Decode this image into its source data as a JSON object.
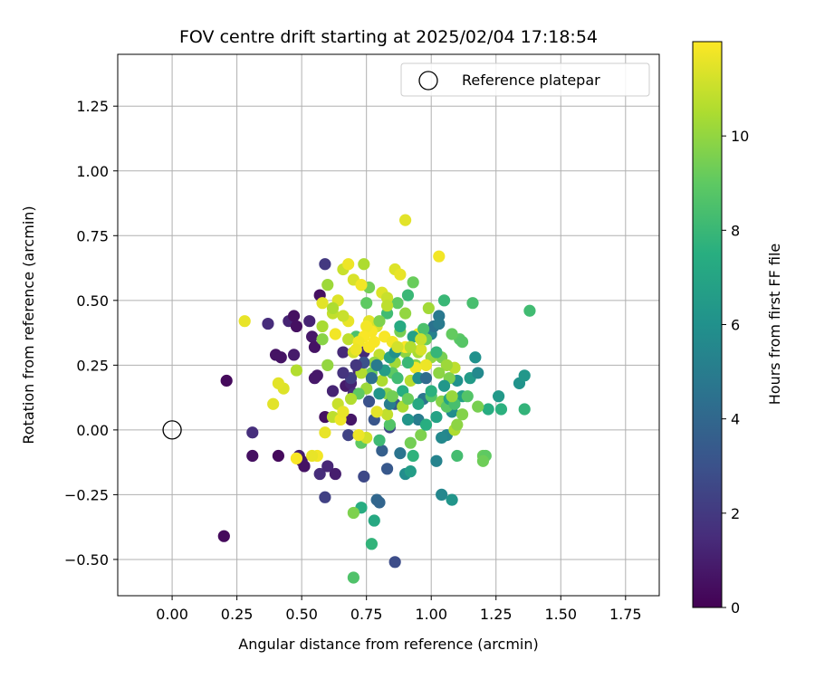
{
  "chart_data": {
    "type": "scatter",
    "title": "FOV centre drift starting at 2025/02/04 17:18:54",
    "xlabel": "Angular distance from reference (arcmin)",
    "ylabel": "Rotation from reference (arcmin)",
    "xlim": [
      -0.21,
      1.88
    ],
    "ylim": [
      -0.64,
      1.45
    ],
    "xticks": [
      0.0,
      0.25,
      0.5,
      0.75,
      1.0,
      1.25,
      1.5,
      1.75
    ],
    "xtick_labels": [
      "0.00",
      "0.25",
      "0.50",
      "0.75",
      "1.00",
      "1.25",
      "1.50",
      "1.75"
    ],
    "yticks": [
      -0.5,
      -0.25,
      0.0,
      0.25,
      0.5,
      0.75,
      1.0,
      1.25
    ],
    "ytick_labels": [
      "−0.50",
      "−0.25",
      "0.00",
      "0.25",
      "0.50",
      "0.75",
      "1.00",
      "1.25"
    ],
    "grid": true,
    "legend": {
      "placement": "upper right",
      "entries": [
        "Reference platepar"
      ]
    },
    "reference_point": {
      "x": 0.0,
      "y": 0.0,
      "marker": "hollow circle"
    },
    "colorbar": {
      "label": "Hours from first FF file",
      "colormap": "viridis",
      "min": 0,
      "max": 12,
      "ticks": [
        0,
        2,
        4,
        6,
        8,
        10
      ],
      "tick_labels": [
        "0",
        "2",
        "4",
        "6",
        "8",
        "10"
      ]
    },
    "points": [
      {
        "x": 0.21,
        "y": 0.19,
        "h": 0.3
      },
      {
        "x": 0.2,
        "y": -0.41,
        "h": 0.3
      },
      {
        "x": 0.31,
        "y": -0.1,
        "h": 0.5
      },
      {
        "x": 0.31,
        "y": -0.01,
        "h": 1.6
      },
      {
        "x": 0.37,
        "y": 0.41,
        "h": 1.5
      },
      {
        "x": 0.4,
        "y": 0.29,
        "h": 0.6
      },
      {
        "x": 0.42,
        "y": 0.28,
        "h": 0.6
      },
      {
        "x": 0.41,
        "y": -0.1,
        "h": 0.3
      },
      {
        "x": 0.45,
        "y": 0.42,
        "h": 1.2
      },
      {
        "x": 0.47,
        "y": 0.44,
        "h": 0.5
      },
      {
        "x": 0.48,
        "y": 0.4,
        "h": 0.5
      },
      {
        "x": 0.47,
        "y": 0.29,
        "h": 0.9
      },
      {
        "x": 0.49,
        "y": -0.1,
        "h": 1.0
      },
      {
        "x": 0.5,
        "y": -0.12,
        "h": 0.7
      },
      {
        "x": 0.51,
        "y": -0.14,
        "h": 0.6
      },
      {
        "x": 0.53,
        "y": 0.42,
        "h": 1.2
      },
      {
        "x": 0.54,
        "y": 0.36,
        "h": 0.8
      },
      {
        "x": 0.55,
        "y": 0.32,
        "h": 0.6
      },
      {
        "x": 0.56,
        "y": 0.21,
        "h": 0.8
      },
      {
        "x": 0.55,
        "y": 0.2,
        "h": 0.8
      },
      {
        "x": 0.57,
        "y": -0.17,
        "h": 1.5
      },
      {
        "x": 0.57,
        "y": 0.52,
        "h": 0.5
      },
      {
        "x": 0.59,
        "y": 0.64,
        "h": 2.0
      },
      {
        "x": 0.59,
        "y": 0.05,
        "h": 0.5
      },
      {
        "x": 0.59,
        "y": -0.26,
        "h": 2.3
      },
      {
        "x": 0.6,
        "y": -0.14,
        "h": 1.3
      },
      {
        "x": 0.63,
        "y": -0.17,
        "h": 1.0
      },
      {
        "x": 0.62,
        "y": 0.15,
        "h": 1.2
      },
      {
        "x": 0.66,
        "y": 0.3,
        "h": 1.4
      },
      {
        "x": 0.67,
        "y": 0.17,
        "h": 0.9
      },
      {
        "x": 0.69,
        "y": 0.18,
        "h": 1.2
      },
      {
        "x": 0.69,
        "y": 0.04,
        "h": 0.7
      },
      {
        "x": 0.68,
        "y": -0.02,
        "h": 2.4
      },
      {
        "x": 0.7,
        "y": 0.14,
        "h": 1.6
      },
      {
        "x": 0.72,
        "y": 0.23,
        "h": 1.3
      },
      {
        "x": 0.74,
        "y": 0.3,
        "h": 1.4
      },
      {
        "x": 0.74,
        "y": -0.18,
        "h": 2.6
      },
      {
        "x": 0.76,
        "y": 0.11,
        "h": 3.0
      },
      {
        "x": 0.78,
        "y": 0.04,
        "h": 3.2
      },
      {
        "x": 0.79,
        "y": -0.27,
        "h": 4.0
      },
      {
        "x": 0.8,
        "y": -0.28,
        "h": 3.9
      },
      {
        "x": 0.81,
        "y": -0.08,
        "h": 3.6
      },
      {
        "x": 0.83,
        "y": -0.15,
        "h": 3.3
      },
      {
        "x": 0.84,
        "y": 0.01,
        "h": 2.6
      },
      {
        "x": 0.86,
        "y": -0.51,
        "h": 2.8
      },
      {
        "x": 0.86,
        "y": 0.1,
        "h": 3.3
      },
      {
        "x": 0.88,
        "y": -0.09,
        "h": 4.6
      },
      {
        "x": 0.9,
        "y": -0.17,
        "h": 5.8
      },
      {
        "x": 0.92,
        "y": -0.16,
        "h": 6.6
      },
      {
        "x": 0.95,
        "y": 0.04,
        "h": 5.0
      },
      {
        "x": 0.97,
        "y": 0.12,
        "h": 4.7
      },
      {
        "x": 1.0,
        "y": 0.37,
        "h": 5.2
      },
      {
        "x": 1.01,
        "y": 0.4,
        "h": 4.5
      },
      {
        "x": 1.03,
        "y": 0.44,
        "h": 4.8
      },
      {
        "x": 1.03,
        "y": 0.41,
        "h": 4.9
      },
      {
        "x": 1.02,
        "y": -0.12,
        "h": 5.3
      },
      {
        "x": 1.04,
        "y": -0.25,
        "h": 5.5
      },
      {
        "x": 1.06,
        "y": -0.02,
        "h": 5.4
      },
      {
        "x": 1.08,
        "y": 0.07,
        "h": 5.8
      },
      {
        "x": 1.08,
        "y": -0.27,
        "h": 6.2
      },
      {
        "x": 1.1,
        "y": 0.19,
        "h": 6.0
      },
      {
        "x": 1.15,
        "y": 0.2,
        "h": 6.5
      },
      {
        "x": 1.17,
        "y": 0.28,
        "h": 6.0
      },
      {
        "x": 1.18,
        "y": 0.22,
        "h": 5.6
      },
      {
        "x": 1.12,
        "y": 0.13,
        "h": 6.7
      },
      {
        "x": 1.22,
        "y": 0.08,
        "h": 7.4
      },
      {
        "x": 1.26,
        "y": 0.13,
        "h": 6.4
      },
      {
        "x": 1.27,
        "y": 0.08,
        "h": 7.6
      },
      {
        "x": 1.34,
        "y": 0.18,
        "h": 6.1
      },
      {
        "x": 1.36,
        "y": 0.21,
        "h": 6.3
      },
      {
        "x": 1.36,
        "y": 0.08,
        "h": 7.8
      },
      {
        "x": 1.38,
        "y": 0.46,
        "h": 8.2
      },
      {
        "x": 1.16,
        "y": 0.49,
        "h": 8.4
      },
      {
        "x": 1.11,
        "y": 0.35,
        "h": 8.9
      },
      {
        "x": 1.2,
        "y": -0.1,
        "h": 9.2
      },
      {
        "x": 1.21,
        "y": -0.1,
        "h": 9.0
      },
      {
        "x": 1.2,
        "y": -0.12,
        "h": 9.3
      },
      {
        "x": 1.1,
        "y": -0.1,
        "h": 8.3
      },
      {
        "x": 1.18,
        "y": 0.09,
        "h": 9.5
      },
      {
        "x": 1.14,
        "y": 0.13,
        "h": 8.7
      },
      {
        "x": 1.05,
        "y": 0.5,
        "h": 8.0
      },
      {
        "x": 1.08,
        "y": 0.37,
        "h": 9.1
      },
      {
        "x": 0.93,
        "y": 0.57,
        "h": 9.2
      },
      {
        "x": 0.91,
        "y": 0.52,
        "h": 8.0
      },
      {
        "x": 0.87,
        "y": 0.49,
        "h": 9.0
      },
      {
        "x": 0.83,
        "y": 0.45,
        "h": 8.2
      },
      {
        "x": 0.76,
        "y": 0.55,
        "h": 9.4
      },
      {
        "x": 0.75,
        "y": 0.49,
        "h": 9.0
      },
      {
        "x": 0.71,
        "y": 0.36,
        "h": 8.5
      },
      {
        "x": 0.73,
        "y": -0.3,
        "h": 7.4
      },
      {
        "x": 0.7,
        "y": -0.32,
        "h": 9.6
      },
      {
        "x": 0.7,
        "y": -0.57,
        "h": 8.6
      },
      {
        "x": 0.78,
        "y": -0.35,
        "h": 7.2
      },
      {
        "x": 0.77,
        "y": -0.44,
        "h": 7.8
      },
      {
        "x": 0.73,
        "y": -0.05,
        "h": 9.0
      },
      {
        "x": 0.8,
        "y": -0.04,
        "h": 8.1
      },
      {
        "x": 0.84,
        "y": 0.02,
        "h": 8.7
      },
      {
        "x": 0.92,
        "y": -0.05,
        "h": 9.4
      },
      {
        "x": 0.93,
        "y": -0.1,
        "h": 7.7
      },
      {
        "x": 0.96,
        "y": -0.02,
        "h": 9.6
      },
      {
        "x": 0.98,
        "y": 0.02,
        "h": 7.5
      },
      {
        "x": 1.0,
        "y": 0.13,
        "h": 8.7
      },
      {
        "x": 1.04,
        "y": 0.11,
        "h": 9.8
      },
      {
        "x": 1.06,
        "y": 0.09,
        "h": 8.9
      },
      {
        "x": 1.09,
        "y": 0.0,
        "h": 10.5
      },
      {
        "x": 1.1,
        "y": 0.02,
        "h": 9.9
      },
      {
        "x": 1.07,
        "y": 0.2,
        "h": 9.6
      },
      {
        "x": 1.09,
        "y": 0.24,
        "h": 10.8
      },
      {
        "x": 1.04,
        "y": 0.28,
        "h": 9.5
      },
      {
        "x": 1.0,
        "y": 0.28,
        "h": 10.0
      },
      {
        "x": 0.98,
        "y": 0.35,
        "h": 9.2
      },
      {
        "x": 0.95,
        "y": 0.3,
        "h": 10.4
      },
      {
        "x": 0.94,
        "y": 0.25,
        "h": 9.8
      },
      {
        "x": 0.92,
        "y": 0.19,
        "h": 10.7
      },
      {
        "x": 0.9,
        "y": 0.3,
        "h": 9.9
      },
      {
        "x": 0.88,
        "y": 0.38,
        "h": 9.5
      },
      {
        "x": 0.86,
        "y": 0.26,
        "h": 10.3
      },
      {
        "x": 0.85,
        "y": 0.22,
        "h": 9.0
      },
      {
        "x": 0.83,
        "y": 0.14,
        "h": 9.9
      },
      {
        "x": 0.81,
        "y": 0.19,
        "h": 10.5
      },
      {
        "x": 0.8,
        "y": 0.29,
        "h": 10.9
      },
      {
        "x": 0.78,
        "y": 0.26,
        "h": 10.1
      },
      {
        "x": 0.77,
        "y": 0.22,
        "h": 9.2
      },
      {
        "x": 0.75,
        "y": 0.16,
        "h": 10.2
      },
      {
        "x": 0.73,
        "y": 0.22,
        "h": 10.6
      },
      {
        "x": 0.72,
        "y": 0.14,
        "h": 9.0
      },
      {
        "x": 0.7,
        "y": 0.3,
        "h": 11.2
      },
      {
        "x": 0.68,
        "y": 0.35,
        "h": 10.8
      },
      {
        "x": 0.68,
        "y": 0.42,
        "h": 11.6
      },
      {
        "x": 0.66,
        "y": 0.44,
        "h": 11.0
      },
      {
        "x": 0.64,
        "y": 0.5,
        "h": 11.4
      },
      {
        "x": 0.62,
        "y": 0.45,
        "h": 10.9
      },
      {
        "x": 0.6,
        "y": 0.56,
        "h": 10.2
      },
      {
        "x": 0.58,
        "y": 0.49,
        "h": 11.5
      },
      {
        "x": 0.58,
        "y": 0.4,
        "h": 10.4
      },
      {
        "x": 0.58,
        "y": 0.35,
        "h": 9.8
      },
      {
        "x": 0.6,
        "y": 0.25,
        "h": 10.0
      },
      {
        "x": 0.62,
        "y": 0.05,
        "h": 10.8
      },
      {
        "x": 0.64,
        "y": 0.1,
        "h": 11.0
      },
      {
        "x": 0.65,
        "y": 0.04,
        "h": 11.7
      },
      {
        "x": 0.66,
        "y": 0.62,
        "h": 11.0
      },
      {
        "x": 0.68,
        "y": 0.64,
        "h": 11.7
      },
      {
        "x": 0.7,
        "y": 0.58,
        "h": 11.3
      },
      {
        "x": 0.74,
        "y": 0.64,
        "h": 10.5
      },
      {
        "x": 0.73,
        "y": 0.56,
        "h": 11.8
      },
      {
        "x": 0.76,
        "y": 0.42,
        "h": 11.5
      },
      {
        "x": 0.79,
        "y": 0.4,
        "h": 11.3
      },
      {
        "x": 0.81,
        "y": 0.53,
        "h": 11.4
      },
      {
        "x": 0.83,
        "y": 0.51,
        "h": 11.0
      },
      {
        "x": 0.86,
        "y": 0.62,
        "h": 11.4
      },
      {
        "x": 0.88,
        "y": 0.6,
        "h": 11.6
      },
      {
        "x": 0.9,
        "y": 0.81,
        "h": 11.5
      },
      {
        "x": 0.96,
        "y": 0.31,
        "h": 11.3
      },
      {
        "x": 0.98,
        "y": 0.25,
        "h": 11.7
      },
      {
        "x": 1.03,
        "y": 0.67,
        "h": 11.8
      },
      {
        "x": 0.9,
        "y": 0.32,
        "h": 11.9
      },
      {
        "x": 0.89,
        "y": 0.09,
        "h": 10.4
      },
      {
        "x": 0.83,
        "y": 0.06,
        "h": 10.9
      },
      {
        "x": 0.79,
        "y": 0.07,
        "h": 11.5
      },
      {
        "x": 0.75,
        "y": -0.03,
        "h": 11.2
      },
      {
        "x": 0.72,
        "y": -0.02,
        "h": 11.7
      },
      {
        "x": 0.69,
        "y": 0.12,
        "h": 10.6
      },
      {
        "x": 0.66,
        "y": 0.07,
        "h": 11.6
      },
      {
        "x": 0.59,
        "y": -0.01,
        "h": 11.6
      },
      {
        "x": 0.56,
        "y": -0.1,
        "h": 11.8
      },
      {
        "x": 0.54,
        "y": -0.1,
        "h": 11.6
      },
      {
        "x": 0.48,
        "y": -0.11,
        "h": 11.9
      },
      {
        "x": 0.48,
        "y": 0.23,
        "h": 10.6
      },
      {
        "x": 0.43,
        "y": 0.16,
        "h": 11.4
      },
      {
        "x": 0.41,
        "y": 0.18,
        "h": 11.5
      },
      {
        "x": 0.39,
        "y": 0.1,
        "h": 11.5
      },
      {
        "x": 0.28,
        "y": 0.42,
        "h": 11.6
      },
      {
        "x": 0.78,
        "y": 0.34,
        "h": 11.9
      },
      {
        "x": 0.77,
        "y": 0.38,
        "h": 11.9
      },
      {
        "x": 0.75,
        "y": 0.4,
        "h": 11.8
      },
      {
        "x": 0.74,
        "y": 0.36,
        "h": 11.9
      },
      {
        "x": 0.72,
        "y": 0.34,
        "h": 11.8
      },
      {
        "x": 0.71,
        "y": 0.31,
        "h": 11.7
      },
      {
        "x": 0.76,
        "y": 0.32,
        "h": 11.9
      },
      {
        "x": 0.82,
        "y": 0.36,
        "h": 11.9
      },
      {
        "x": 0.85,
        "y": 0.34,
        "h": 11.8
      },
      {
        "x": 0.95,
        "y": 0.37,
        "h": 11.7
      },
      {
        "x": 0.94,
        "y": 0.24,
        "h": 11.8
      },
      {
        "x": 1.0,
        "y": 0.15,
        "h": 7.6
      },
      {
        "x": 0.97,
        "y": 0.39,
        "h": 8.5
      },
      {
        "x": 0.91,
        "y": 0.26,
        "h": 8.0
      },
      {
        "x": 0.89,
        "y": 0.15,
        "h": 7.5
      },
      {
        "x": 0.87,
        "y": 0.2,
        "h": 8.2
      },
      {
        "x": 0.84,
        "y": 0.28,
        "h": 7.0
      },
      {
        "x": 0.82,
        "y": 0.23,
        "h": 6.6
      },
      {
        "x": 0.8,
        "y": 0.14,
        "h": 6.2
      },
      {
        "x": 0.86,
        "y": 0.3,
        "h": 6.0
      },
      {
        "x": 0.95,
        "y": 0.2,
        "h": 5.9
      },
      {
        "x": 0.98,
        "y": 0.2,
        "h": 4.2
      },
      {
        "x": 1.05,
        "y": 0.17,
        "h": 6.3
      },
      {
        "x": 1.07,
        "y": 0.12,
        "h": 7.0
      },
      {
        "x": 1.09,
        "y": 0.1,
        "h": 8.4
      },
      {
        "x": 1.12,
        "y": 0.34,
        "h": 8.8
      },
      {
        "x": 1.02,
        "y": 0.3,
        "h": 7.9
      },
      {
        "x": 0.93,
        "y": 0.36,
        "h": 6.8
      },
      {
        "x": 0.88,
        "y": 0.4,
        "h": 7.3
      },
      {
        "x": 0.79,
        "y": 0.25,
        "h": 4.9
      },
      {
        "x": 0.77,
        "y": 0.2,
        "h": 4.4
      },
      {
        "x": 0.74,
        "y": 0.26,
        "h": 3.0
      },
      {
        "x": 0.71,
        "y": 0.25,
        "h": 1.9
      },
      {
        "x": 0.69,
        "y": 0.2,
        "h": 2.2
      },
      {
        "x": 0.66,
        "y": 0.22,
        "h": 1.8
      },
      {
        "x": 0.84,
        "y": 0.1,
        "h": 5.1
      },
      {
        "x": 0.91,
        "y": 0.04,
        "h": 6.2
      },
      {
        "x": 0.95,
        "y": 0.1,
        "h": 7.2
      },
      {
        "x": 1.02,
        "y": 0.05,
        "h": 6.9
      },
      {
        "x": 1.04,
        "y": -0.03,
        "h": 5.6
      },
      {
        "x": 1.08,
        "y": 0.13,
        "h": 10.1
      },
      {
        "x": 1.12,
        "y": 0.06,
        "h": 9.7
      },
      {
        "x": 0.99,
        "y": 0.47,
        "h": 10.3
      },
      {
        "x": 0.96,
        "y": 0.35,
        "h": 11.0
      },
      {
        "x": 0.92,
        "y": 0.32,
        "h": 10.6
      },
      {
        "x": 0.87,
        "y": 0.32,
        "h": 11.2
      },
      {
        "x": 0.63,
        "y": 0.37,
        "h": 11.8
      },
      {
        "x": 0.62,
        "y": 0.47,
        "h": 10.5
      },
      {
        "x": 0.8,
        "y": 0.42,
        "h": 9.6
      },
      {
        "x": 0.83,
        "y": 0.48,
        "h": 10.8
      },
      {
        "x": 0.9,
        "y": 0.45,
        "h": 10.0
      },
      {
        "x": 0.85,
        "y": 0.13,
        "h": 9.4
      },
      {
        "x": 0.91,
        "y": 0.12,
        "h": 9.2
      },
      {
        "x": 1.06,
        "y": 0.25,
        "h": 10.2
      },
      {
        "x": 1.03,
        "y": 0.22,
        "h": 9.9
      }
    ]
  }
}
